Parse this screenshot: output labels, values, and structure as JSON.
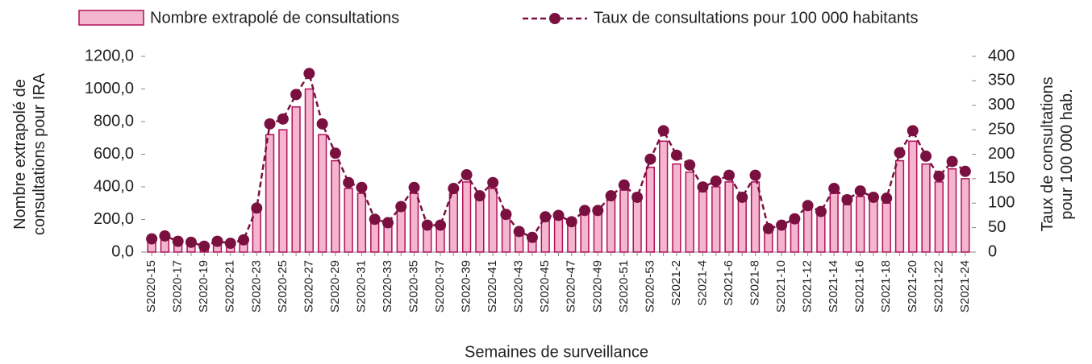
{
  "chart_data": {
    "type": "bar",
    "xlabel": "Semaines de surveillance",
    "ylabel": [
      "Nombre extrapolé de",
      "consultations pour IRA"
    ],
    "y2label": [
      "Taux de consultations",
      "pour 100 000 hab."
    ],
    "categories": [
      "S2020-15",
      null,
      "S2020-17",
      null,
      "S2020-19",
      null,
      "S2020-21",
      null,
      "S2020-23",
      null,
      "S2020-25",
      null,
      "S2020-27",
      null,
      "S2020-29",
      null,
      "S2020-31",
      null,
      "S2020-33",
      null,
      "S2020-35",
      null,
      "S2020-37",
      null,
      "S2020-39",
      null,
      "S2020-41",
      null,
      "S2020-43",
      null,
      "S2020-45",
      null,
      "S2020-47",
      null,
      "S2020-49",
      null,
      "S2020-51",
      null,
      "S2020-53",
      null,
      "S2021-2",
      null,
      "S2021-4",
      null,
      "S2021-6",
      null,
      "S2021-8",
      null,
      "S2021-10",
      null,
      "S2021-12",
      null,
      "S2021-14",
      null,
      "S2021-16",
      null,
      "S2021-18",
      null,
      "S2021-20",
      null,
      "S2021-22",
      null,
      "S2021-24"
    ],
    "series": [
      {
        "name": "Nombre extrapolé de consultations",
        "color": "#f4b6cf",
        "edge": "#b0105a",
        "values": [
          70,
          90,
          60,
          60,
          30,
          60,
          50,
          70,
          250,
          720,
          750,
          890,
          1000,
          720,
          560,
          390,
          360,
          180,
          170,
          260,
          360,
          150,
          150,
          360,
          430,
          320,
          390,
          210,
          120,
          80,
          200,
          210,
          170,
          230,
          230,
          320,
          380,
          310,
          520,
          680,
          540,
          490,
          370,
          400,
          430,
          310,
          430,
          130,
          150,
          190,
          260,
          230,
          360,
          290,
          340,
          310,
          300,
          560,
          680,
          540,
          430,
          510,
          450
        ]
      },
      {
        "name": "Taux de consultations pour 100 000 habitants",
        "color": "#7a1040",
        "axis": "y2",
        "values": [
          27,
          33,
          22,
          20,
          12,
          22,
          18,
          25,
          90,
          262,
          272,
          322,
          365,
          262,
          202,
          142,
          132,
          67,
          60,
          93,
          132,
          55,
          55,
          130,
          158,
          115,
          142,
          77,
          42,
          30,
          72,
          75,
          62,
          85,
          85,
          115,
          137,
          112,
          190,
          248,
          198,
          178,
          133,
          145,
          157,
          112,
          157,
          48,
          55,
          68,
          95,
          83,
          130,
          107,
          125,
          112,
          110,
          203,
          248,
          196,
          155,
          185,
          165
        ]
      }
    ],
    "ylim": [
      0,
      1200
    ],
    "yticks": [
      {
        "value": 0,
        "label": "0,0"
      },
      {
        "value": 200,
        "label": "200,0"
      },
      {
        "value": 400,
        "label": "400,0"
      },
      {
        "value": 600,
        "label": "600,0"
      },
      {
        "value": 800,
        "label": "800,0"
      },
      {
        "value": 1000,
        "label": "1000,0"
      },
      {
        "value": 1200,
        "label": "1200,0"
      }
    ],
    "y2lim": [
      0,
      400
    ],
    "y2ticks": [
      0,
      50,
      100,
      150,
      200,
      250,
      300,
      350,
      400
    ]
  }
}
